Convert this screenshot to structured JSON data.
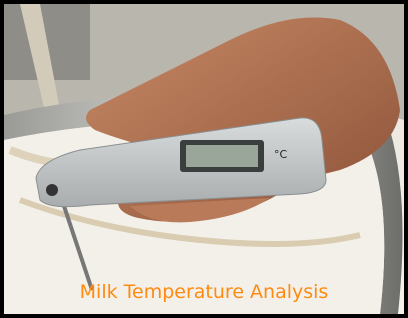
{
  "image": {
    "caption": "Milk Temperature Analysis",
    "display_unit": "°C"
  }
}
